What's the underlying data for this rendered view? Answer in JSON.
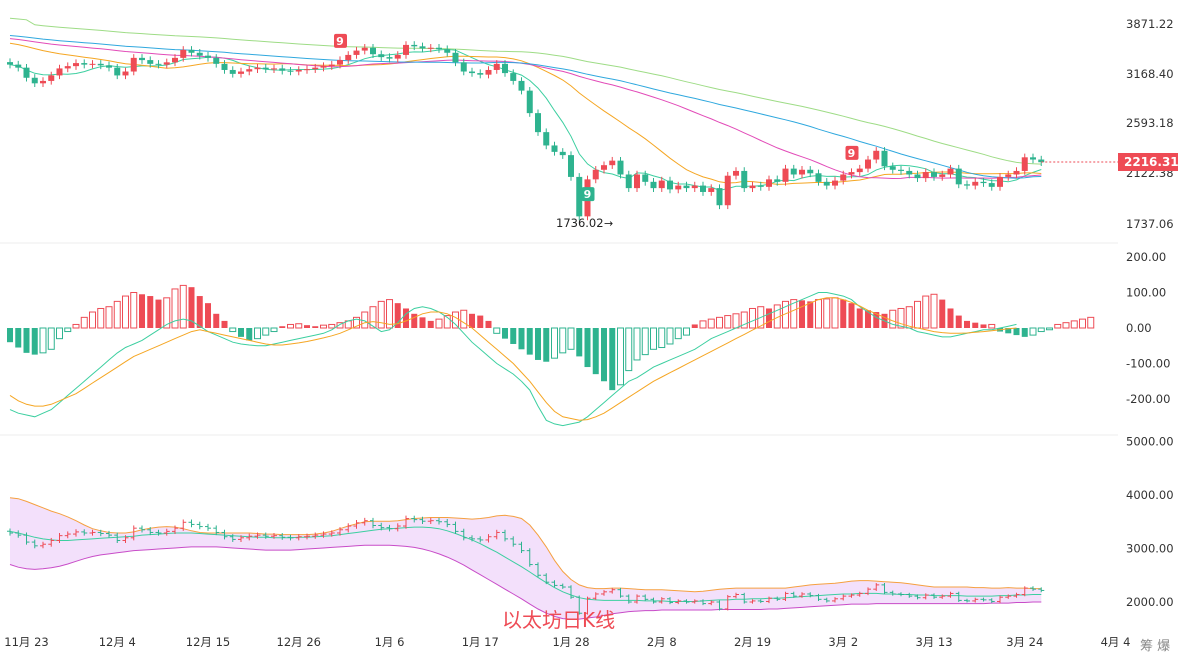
{
  "colors": {
    "up": "#ee4b55",
    "down": "#2eb38f",
    "ma_green": "#3ccfa0",
    "ma_orange": "#f5a623",
    "ma_pink": "#e24bb8",
    "ma_blue": "#2fa8de",
    "ma_lightgreen": "#9edc86",
    "macd_dif": "#3ccfa0",
    "macd_dea": "#f5a623",
    "boll_band_fill": "#f3e0fb",
    "boll_upper": "#f5a040",
    "boll_lower": "#c84cc8",
    "boll_mid": "#3ccfa0",
    "price_tag_bg": "#ee4b55",
    "watermark": "#ee4b55"
  },
  "watermark_text": "以太坊日K线",
  "corner_text": "筹 爆",
  "current_price_label": "2216.31",
  "min_price_label": "1736.02",
  "td_marks": [
    {
      "label": "9",
      "date_index": 40,
      "kind": "sell"
    },
    {
      "label": "9",
      "date_index": 70,
      "kind": "buy"
    },
    {
      "label": "9",
      "date_index": 102,
      "kind": "sell"
    }
  ],
  "chart_data": [
    {
      "type": "candlestick",
      "panel": "price",
      "y_ticks": [
        "3871.22",
        "3168.40",
        "2593.18",
        "2122.38",
        "1737.06"
      ],
      "y_tick_values": [
        3871.22,
        3168.4,
        2593.18,
        2122.38,
        1737.06
      ],
      "x_tick_labels": [
        "11月 23",
        "12月 4",
        "12月 15",
        "12月 26",
        "1月 6",
        "1月 17",
        "1月 28",
        "2月 8",
        "2月 19",
        "3月 2",
        "3月 13",
        "3月 24",
        "4月 4"
      ],
      "x_tick_index": [
        2,
        13,
        24,
        35,
        46,
        57,
        68,
        79,
        90,
        101,
        112,
        123,
        134
      ],
      "close": [
        3290,
        3250,
        3120,
        3050,
        3080,
        3150,
        3240,
        3270,
        3310,
        3290,
        3300,
        3280,
        3250,
        3150,
        3200,
        3380,
        3350,
        3300,
        3290,
        3320,
        3380,
        3490,
        3450,
        3410,
        3380,
        3300,
        3220,
        3170,
        3200,
        3230,
        3250,
        3230,
        3240,
        3210,
        3200,
        3220,
        3230,
        3250,
        3270,
        3290,
        3350,
        3420,
        3480,
        3520,
        3430,
        3390,
        3370,
        3420,
        3560,
        3540,
        3510,
        3520,
        3500,
        3450,
        3320,
        3200,
        3180,
        3160,
        3220,
        3300,
        3180,
        3080,
        2960,
        2700,
        2500,
        2370,
        2310,
        2280,
        2090,
        1790,
        2070,
        2150,
        2190,
        2230,
        2110,
        2000,
        2110,
        2050,
        2000,
        2060,
        1990,
        2020,
        2000,
        2020,
        1970,
        2000,
        1870,
        2100,
        2140,
        2000,
        2020,
        2010,
        2070,
        2050,
        2160,
        2110,
        2150,
        2120,
        2050,
        2020,
        2060,
        2110,
        2130,
        2160,
        2240,
        2320,
        2180,
        2150,
        2140,
        2110,
        2080,
        2130,
        2090,
        2110,
        2160,
        2030,
        2020,
        2050,
        2040,
        2010,
        2090,
        2110,
        2140,
        2260,
        2240,
        2216
      ],
      "note": "daily closes estimated from candle positions (USD)"
    },
    {
      "type": "bar",
      "panel": "macd",
      "y_ticks": [
        "200.00",
        "100.00",
        "0.00",
        "-100.00",
        "-200.00"
      ],
      "y_tick_values": [
        200,
        100,
        0,
        -100,
        -200
      ],
      "hist": [
        -40,
        -55,
        -70,
        -75,
        -70,
        -60,
        -30,
        -10,
        10,
        30,
        45,
        55,
        60,
        75,
        90,
        100,
        95,
        90,
        80,
        85,
        110,
        120,
        115,
        90,
        70,
        40,
        20,
        -10,
        -25,
        -35,
        -30,
        -20,
        -10,
        5,
        10,
        12,
        8,
        5,
        8,
        10,
        15,
        20,
        30,
        45,
        60,
        75,
        80,
        70,
        55,
        40,
        30,
        20,
        25,
        35,
        45,
        50,
        40,
        35,
        20,
        -15,
        -30,
        -45,
        -60,
        -75,
        -90,
        -95,
        -85,
        -70,
        -60,
        -80,
        -110,
        -130,
        -150,
        -175,
        -160,
        -120,
        -90,
        -75,
        -60,
        -55,
        -45,
        -30,
        -20,
        10,
        20,
        25,
        30,
        35,
        40,
        45,
        55,
        60,
        55,
        65,
        75,
        80,
        78,
        75,
        80,
        82,
        85,
        80,
        70,
        55,
        50,
        45,
        40,
        50,
        55,
        60,
        75,
        90,
        95,
        80,
        55,
        35,
        20,
        15,
        10,
        10,
        -10,
        -15,
        -20,
        -25,
        -20,
        -10,
        -5,
        10,
        15,
        20,
        25,
        30
      ],
      "dif": [
        -230,
        -240,
        -245,
        -250,
        -240,
        -230,
        -210,
        -190,
        -170,
        -150,
        -130,
        -110,
        -90,
        -70,
        -55,
        -45,
        -35,
        -20,
        -5,
        10,
        20,
        25,
        20,
        5,
        -10,
        -20,
        -30,
        -40,
        -45,
        -48,
        -50,
        -50,
        -45,
        -40,
        -35,
        -30,
        -25,
        -20,
        -15,
        -5,
        10,
        20,
        25,
        20,
        5,
        -10,
        -5,
        15,
        40,
        55,
        60,
        55,
        45,
        30,
        10,
        -15,
        -40,
        -60,
        -80,
        -100,
        -115,
        -130,
        -150,
        -175,
        -220,
        -260,
        -270,
        -275,
        -270,
        -265,
        -250,
        -230,
        -210,
        -190,
        -170,
        -150,
        -140,
        -125,
        -110,
        -100,
        -90,
        -80,
        -70,
        -60,
        -45,
        -30,
        -20,
        -10,
        0,
        10,
        20,
        30,
        40,
        50,
        60,
        70,
        80,
        90,
        100,
        100,
        95,
        90,
        80,
        60,
        45,
        30,
        20,
        10,
        5,
        0,
        -10,
        -15,
        -20,
        -25,
        -25,
        -20,
        -15,
        -10,
        -5,
        -5,
        0,
        5,
        10
      ],
      "dea": [
        -190,
        -205,
        -215,
        -220,
        -220,
        -215,
        -205,
        -195,
        -185,
        -170,
        -155,
        -140,
        -125,
        -110,
        -95,
        -80,
        -70,
        -60,
        -50,
        -40,
        -30,
        -20,
        -10,
        -5,
        -10,
        -15,
        -20,
        -25,
        -30,
        -35,
        -40,
        -45,
        -48,
        -48,
        -45,
        -42,
        -38,
        -33,
        -28,
        -22,
        -15,
        -5,
        5,
        15,
        18,
        15,
        10,
        12,
        20,
        30,
        40,
        45,
        45,
        40,
        30,
        15,
        0,
        -20,
        -40,
        -60,
        -80,
        -100,
        -125,
        -150,
        -180,
        -210,
        -235,
        -250,
        -255,
        -260,
        -258,
        -250,
        -240,
        -225,
        -210,
        -195,
        -180,
        -165,
        -150,
        -138,
        -126,
        -114,
        -102,
        -90,
        -78,
        -66,
        -54,
        -42,
        -30,
        -18,
        -6,
        6,
        18,
        30,
        40,
        50,
        60,
        70,
        80,
        85,
        85,
        80,
        72,
        62,
        50,
        40,
        30,
        20,
        12,
        5,
        0,
        -5,
        -10,
        -13,
        -15,
        -15,
        -14,
        -12,
        -10,
        -8,
        -5,
        -2,
        0
      ]
    },
    {
      "type": "line",
      "panel": "boll",
      "y_ticks": [
        "5000.00",
        "4000.00",
        "3000.00",
        "2000.00"
      ],
      "y_tick_values": [
        5000,
        4000,
        3000,
        2000
      ],
      "series": [
        {
          "role": "upper",
          "values": [
            3950,
            3930,
            3880,
            3820,
            3760,
            3700,
            3650,
            3590,
            3520,
            3440,
            3370,
            3330,
            3300,
            3290,
            3290,
            3310,
            3350,
            3380,
            3400,
            3410,
            3400,
            3370,
            3330,
            3300,
            3290,
            3290,
            3290,
            3290,
            3290,
            3290,
            3280,
            3270,
            3270,
            3260,
            3260,
            3260,
            3260,
            3270,
            3290,
            3320,
            3370,
            3420,
            3460,
            3500,
            3510,
            3510,
            3510,
            3520,
            3540,
            3560,
            3570,
            3580,
            3580,
            3580,
            3570,
            3560,
            3550,
            3560,
            3580,
            3610,
            3620,
            3600,
            3560,
            3440,
            3250,
            3030,
            2780,
            2570,
            2420,
            2320,
            2270,
            2250,
            2250,
            2260,
            2260,
            2250,
            2240,
            2230,
            2230,
            2230,
            2220,
            2210,
            2200,
            2190,
            2200,
            2220,
            2240,
            2250,
            2260,
            2260,
            2260,
            2260,
            2260,
            2260,
            2260,
            2280,
            2300,
            2320,
            2330,
            2340,
            2350,
            2370,
            2390,
            2400,
            2400,
            2390,
            2380,
            2370,
            2360,
            2340,
            2320,
            2300,
            2280,
            2280,
            2280,
            2280,
            2280,
            2270,
            2270,
            2260,
            2260,
            2270,
            2260,
            2260,
            2250,
            2250
          ]
        },
        {
          "role": "middle",
          "values": [
            3320,
            3290,
            3250,
            3210,
            3180,
            3160,
            3150,
            3150,
            3160,
            3170,
            3180,
            3190,
            3200,
            3210,
            3220,
            3230,
            3250,
            3260,
            3270,
            3280,
            3290,
            3290,
            3290,
            3280,
            3270,
            3260,
            3250,
            3240,
            3230,
            3220,
            3210,
            3210,
            3200,
            3200,
            3200,
            3210,
            3210,
            3220,
            3230,
            3240,
            3260,
            3280,
            3300,
            3320,
            3340,
            3360,
            3370,
            3380,
            3390,
            3400,
            3400,
            3390,
            3370,
            3330,
            3280,
            3220,
            3160,
            3090,
            3010,
            2930,
            2840,
            2750,
            2660,
            2560,
            2460,
            2360,
            2270,
            2190,
            2130,
            2080,
            2050,
            2040,
            2030,
            2030,
            2030,
            2030,
            2030,
            2020,
            2020,
            2020,
            2010,
            2010,
            2010,
            2010,
            2020,
            2030,
            2040,
            2040,
            2050,
            2050,
            2060,
            2060,
            2070,
            2070,
            2080,
            2090,
            2100,
            2110,
            2120,
            2130,
            2140,
            2150,
            2150,
            2160,
            2160,
            2160,
            2150,
            2150,
            2140,
            2140,
            2130,
            2130,
            2120,
            2120,
            2120,
            2120,
            2110,
            2110,
            2110,
            2110,
            2120,
            2120,
            2130,
            2130,
            2140,
            2140
          ]
        },
        {
          "role": "lower",
          "values": [
            2700,
            2650,
            2620,
            2610,
            2620,
            2640,
            2670,
            2710,
            2760,
            2810,
            2850,
            2880,
            2900,
            2920,
            2940,
            2960,
            2970,
            2980,
            2990,
            3000,
            3010,
            3020,
            3030,
            3030,
            3030,
            3030,
            3020,
            3010,
            3000,
            2990,
            2980,
            2970,
            2970,
            2970,
            2970,
            2980,
            2990,
            3000,
            3010,
            3020,
            3030,
            3040,
            3050,
            3060,
            3060,
            3060,
            3060,
            3050,
            3040,
            3020,
            2990,
            2950,
            2900,
            2840,
            2770,
            2690,
            2600,
            2510,
            2420,
            2330,
            2240,
            2150,
            2060,
            1960,
            1870,
            1790,
            1730,
            1690,
            1680,
            1680,
            1700,
            1720,
            1750,
            1780,
            1800,
            1820,
            1830,
            1840,
            1840,
            1850,
            1850,
            1850,
            1850,
            1850,
            1850,
            1850,
            1860,
            1860,
            1860,
            1860,
            1860,
            1860,
            1870,
            1870,
            1880,
            1890,
            1900,
            1910,
            1920,
            1930,
            1940,
            1950,
            1960,
            1960,
            1960,
            1970,
            1970,
            1970,
            1970,
            1970,
            1970,
            1970,
            1970,
            1970,
            1970,
            1970,
            1970,
            1970,
            1970,
            1980,
            1980,
            1980,
            1990,
            1990,
            2000,
            2000
          ]
        }
      ]
    }
  ]
}
